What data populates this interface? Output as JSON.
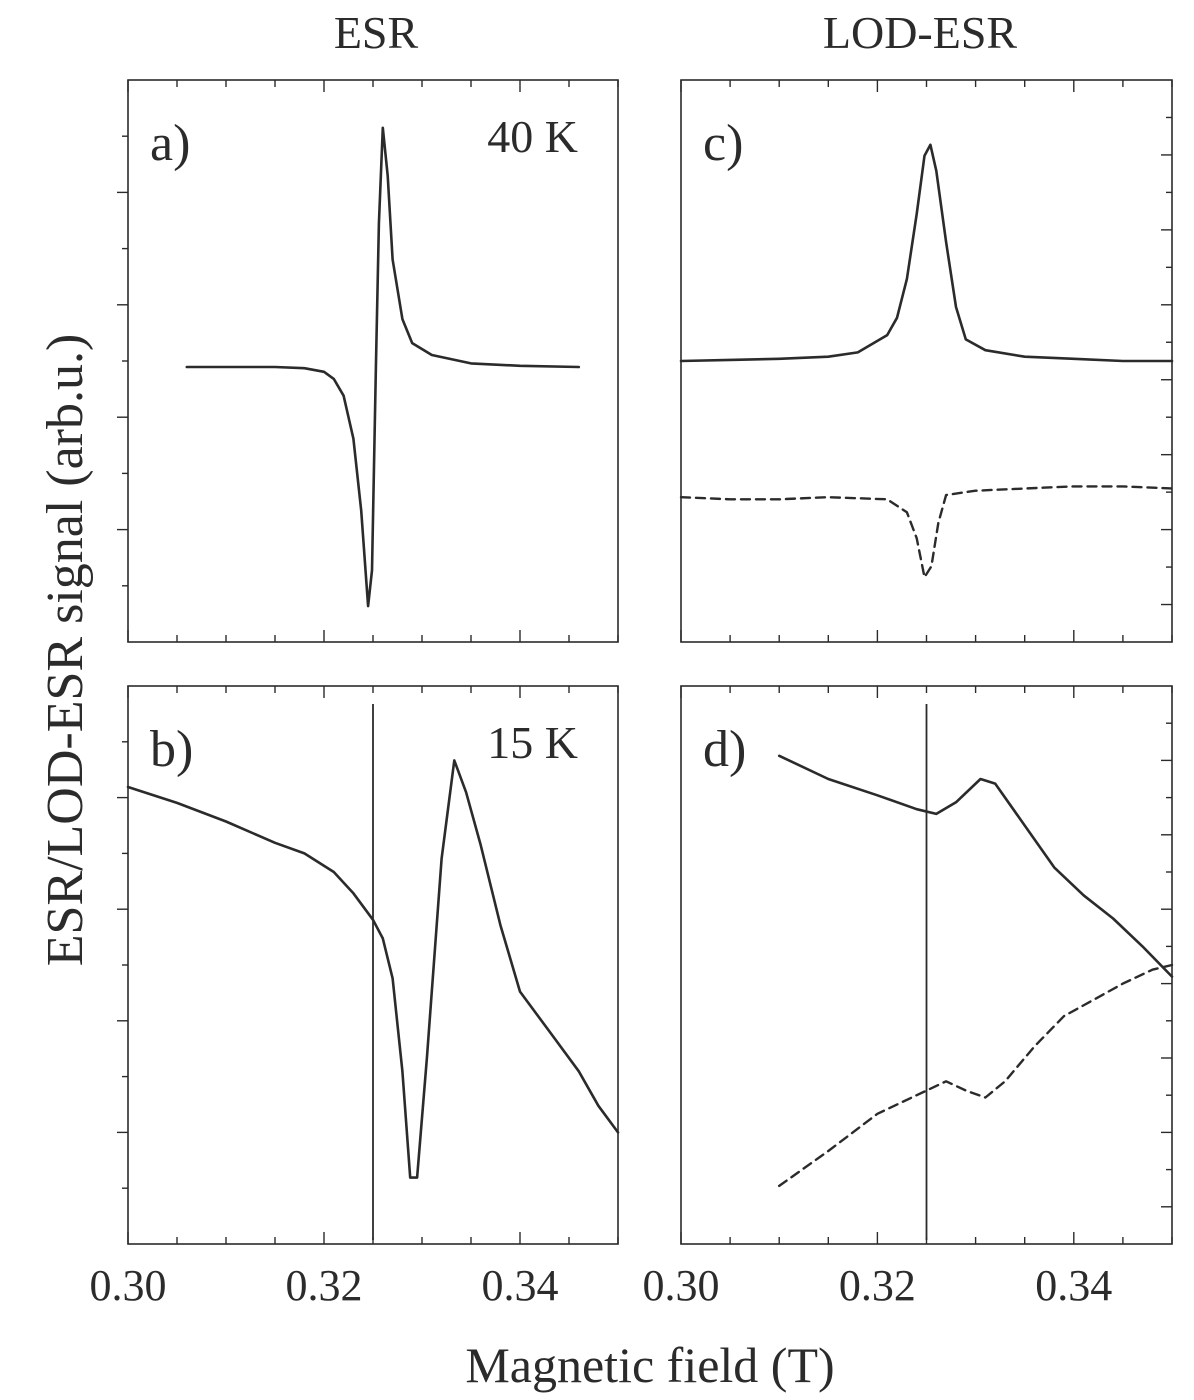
{
  "figure": {
    "ylabel": "ESR/LOD-ESR signal (arb.u.)",
    "xlabel": "Magnetic field (T)",
    "columns": [
      "ESR",
      "LOD-ESR"
    ]
  },
  "chart_data": [
    {
      "panel": "a",
      "type": "line",
      "column_title": "ESR",
      "label": "a)",
      "temperature": "40 K",
      "xlim": [
        0.3,
        0.35
      ],
      "ylim": [
        -1.15,
        1.2
      ],
      "xticks": [
        "0.30",
        "0.32",
        "0.34"
      ],
      "y_tick_labels": "none",
      "series": [
        {
          "style": "solid",
          "points": [
            [
              0.306,
              0
            ],
            [
              0.31,
              0
            ],
            [
              0.315,
              0
            ],
            [
              0.318,
              -0.005
            ],
            [
              0.32,
              -0.02
            ],
            [
              0.321,
              -0.05
            ],
            [
              0.322,
              -0.12
            ],
            [
              0.323,
              -0.3
            ],
            [
              0.3238,
              -0.6
            ],
            [
              0.3245,
              -1.0
            ],
            [
              0.3249,
              -0.85
            ],
            [
              0.3253,
              0
            ],
            [
              0.3256,
              0.6
            ],
            [
              0.326,
              1.0
            ],
            [
              0.3265,
              0.8
            ],
            [
              0.327,
              0.45
            ],
            [
              0.328,
              0.2
            ],
            [
              0.329,
              0.1
            ],
            [
              0.331,
              0.05
            ],
            [
              0.335,
              0.015
            ],
            [
              0.34,
              0.005
            ],
            [
              0.346,
              0
            ]
          ]
        }
      ]
    },
    {
      "panel": "b",
      "type": "line",
      "column_title": "ESR",
      "label": "b)",
      "temperature": "15 K",
      "xlim": [
        0.3,
        0.35
      ],
      "ylim": [
        -1.1,
        1.0
      ],
      "xticks": [
        "0.30",
        "0.32",
        "0.34"
      ],
      "y_tick_labels": "none",
      "vline_x": 0.325,
      "series": [
        {
          "style": "solid",
          "points": [
            [
              0.3,
              0.62
            ],
            [
              0.305,
              0.56
            ],
            [
              0.31,
              0.49
            ],
            [
              0.315,
              0.41
            ],
            [
              0.318,
              0.37
            ],
            [
              0.321,
              0.3
            ],
            [
              0.323,
              0.22
            ],
            [
              0.325,
              0.12
            ],
            [
              0.326,
              0.05
            ],
            [
              0.327,
              -0.1
            ],
            [
              0.328,
              -0.45
            ],
            [
              0.3288,
              -0.85
            ],
            [
              0.3295,
              -0.85
            ],
            [
              0.3305,
              -0.4
            ],
            [
              0.332,
              0.35
            ],
            [
              0.3333,
              0.72
            ],
            [
              0.3345,
              0.6
            ],
            [
              0.336,
              0.4
            ],
            [
              0.338,
              0.1
            ],
            [
              0.34,
              -0.15
            ],
            [
              0.343,
              -0.3
            ],
            [
              0.346,
              -0.45
            ],
            [
              0.348,
              -0.58
            ],
            [
              0.35,
              -0.68
            ]
          ]
        }
      ]
    },
    {
      "panel": "c",
      "type": "line",
      "column_title": "LOD-ESR",
      "label": "c)",
      "xlim": [
        0.3,
        0.35
      ],
      "ylim": [
        -1.3,
        1.3
      ],
      "xticks": [
        "0.30",
        "0.32",
        "0.34"
      ],
      "y_tick_labels": "none",
      "series": [
        {
          "style": "solid",
          "points": [
            [
              0.3,
              0.0
            ],
            [
              0.305,
              0.005
            ],
            [
              0.31,
              0.01
            ],
            [
              0.315,
              0.02
            ],
            [
              0.318,
              0.04
            ],
            [
              0.321,
              0.12
            ],
            [
              0.322,
              0.2
            ],
            [
              0.323,
              0.38
            ],
            [
              0.324,
              0.68
            ],
            [
              0.3248,
              0.95
            ],
            [
              0.3254,
              1.0
            ],
            [
              0.326,
              0.88
            ],
            [
              0.327,
              0.55
            ],
            [
              0.328,
              0.25
            ],
            [
              0.329,
              0.1
            ],
            [
              0.331,
              0.05
            ],
            [
              0.335,
              0.02
            ],
            [
              0.34,
              0.01
            ],
            [
              0.345,
              0.0
            ],
            [
              0.35,
              0.0
            ]
          ]
        },
        {
          "style": "dashed",
          "points": [
            [
              0.3,
              -0.63
            ],
            [
              0.305,
              -0.64
            ],
            [
              0.31,
              -0.64
            ],
            [
              0.315,
              -0.63
            ],
            [
              0.321,
              -0.64
            ],
            [
              0.323,
              -0.7
            ],
            [
              0.324,
              -0.82
            ],
            [
              0.3248,
              -1.0
            ],
            [
              0.3255,
              -0.95
            ],
            [
              0.3262,
              -0.75
            ],
            [
              0.327,
              -0.62
            ],
            [
              0.33,
              -0.6
            ],
            [
              0.335,
              -0.59
            ],
            [
              0.34,
              -0.58
            ],
            [
              0.345,
              -0.58
            ],
            [
              0.35,
              -0.59
            ]
          ]
        }
      ]
    },
    {
      "panel": "d",
      "type": "line",
      "column_title": "LOD-ESR",
      "label": "d)",
      "xlim": [
        0.3,
        0.35
      ],
      "ylim": [
        -1.2,
        1.2
      ],
      "xticks": [
        "0.30",
        "0.32",
        "0.34"
      ],
      "y_tick_labels": "none",
      "vline_x": 0.325,
      "series": [
        {
          "style": "solid",
          "points": [
            [
              0.31,
              0.9
            ],
            [
              0.315,
              0.8
            ],
            [
              0.32,
              0.73
            ],
            [
              0.324,
              0.67
            ],
            [
              0.326,
              0.65
            ],
            [
              0.328,
              0.7
            ],
            [
              0.3305,
              0.8
            ],
            [
              0.332,
              0.78
            ],
            [
              0.335,
              0.6
            ],
            [
              0.338,
              0.42
            ],
            [
              0.341,
              0.3
            ],
            [
              0.344,
              0.2
            ],
            [
              0.347,
              0.08
            ],
            [
              0.35,
              -0.05
            ]
          ]
        },
        {
          "style": "dashed",
          "points": [
            [
              0.31,
              -0.95
            ],
            [
              0.315,
              -0.8
            ],
            [
              0.32,
              -0.64
            ],
            [
              0.324,
              -0.56
            ],
            [
              0.327,
              -0.5
            ],
            [
              0.329,
              -0.54
            ],
            [
              0.331,
              -0.57
            ],
            [
              0.333,
              -0.5
            ],
            [
              0.336,
              -0.35
            ],
            [
              0.339,
              -0.22
            ],
            [
              0.342,
              -0.15
            ],
            [
              0.345,
              -0.08
            ],
            [
              0.348,
              -0.02
            ],
            [
              0.35,
              0.0
            ]
          ]
        }
      ]
    }
  ]
}
